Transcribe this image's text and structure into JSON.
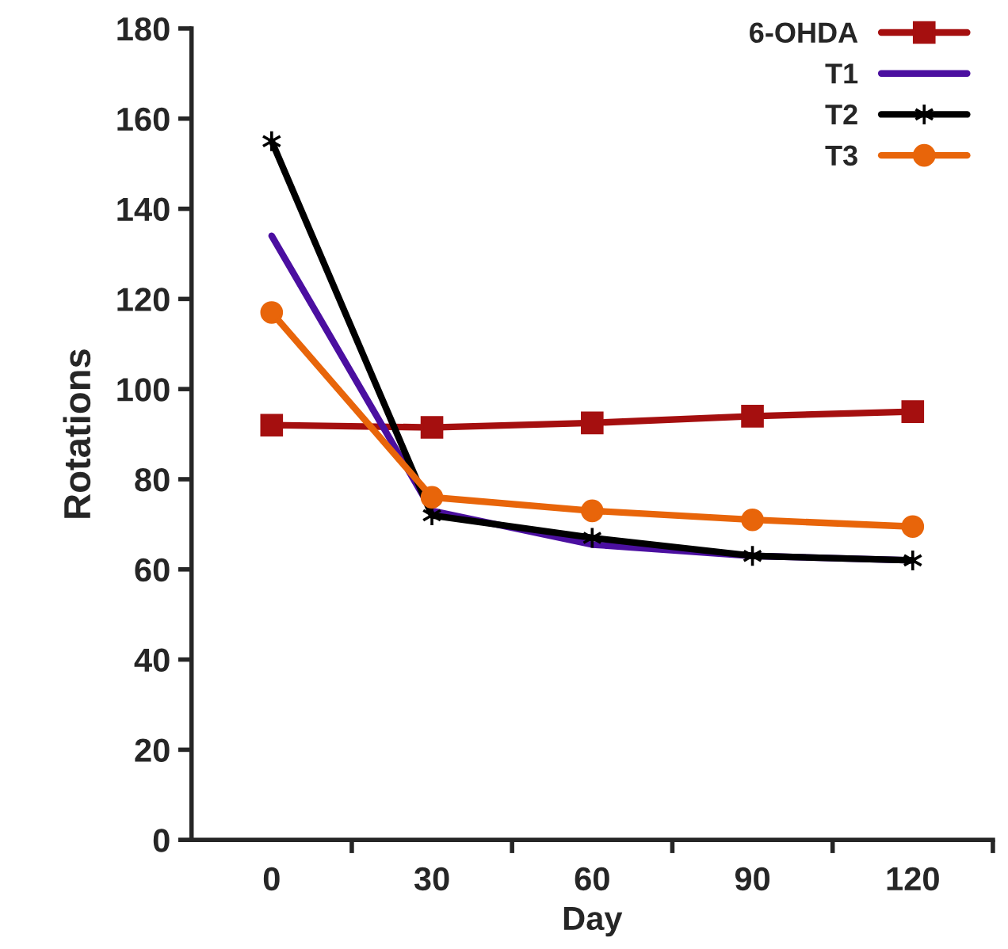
{
  "chart_data": {
    "type": "line",
    "xlabel": "Day",
    "ylabel": "Rotations",
    "categories": [
      "0",
      "30",
      "60",
      "90",
      "120"
    ],
    "series": [
      {
        "name": "6-OHDA",
        "color": "#a50f0f",
        "marker": "square",
        "values": [
          92,
          91.5,
          92.5,
          94,
          95
        ]
      },
      {
        "name": "T1",
        "color": "#4b0fa0",
        "marker": "none",
        "values": [
          134,
          73,
          65.5,
          63,
          62
        ]
      },
      {
        "name": "T2",
        "color": "#000000",
        "marker": "cross",
        "values": [
          155,
          72,
          67,
          63,
          62
        ]
      },
      {
        "name": "T3",
        "color": "#e8650a",
        "marker": "circle",
        "values": [
          117,
          76,
          73,
          71,
          69.5
        ]
      }
    ],
    "ylim": [
      0,
      180
    ],
    "yticks": [
      0,
      20,
      40,
      60,
      80,
      100,
      120,
      140,
      160,
      180
    ],
    "grid": false,
    "legend": "top right"
  }
}
